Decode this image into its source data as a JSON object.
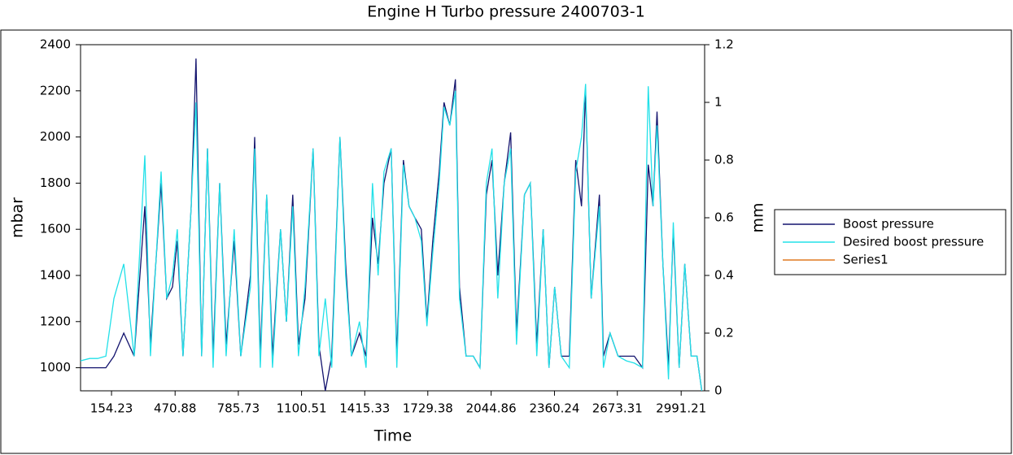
{
  "chart_data": {
    "type": "line",
    "title": "Engine H   Turbo pressure 2400703-1",
    "x_label": "Time",
    "y_label": "mbar",
    "y2_label": "mm",
    "x": [
      0,
      45,
      85,
      126,
      166,
      215,
      267,
      320,
      348,
      401,
      429,
      458,
      482,
      510,
      551,
      575,
      603,
      632,
      660,
      693,
      725,
      765,
      798,
      846,
      867,
      895,
      927,
      956,
      996,
      1025,
      1057,
      1085,
      1118,
      1158,
      1187,
      1219,
      1251,
      1292,
      1320,
      1349,
      1389,
      1422,
      1454,
      1482,
      1511,
      1547,
      1575,
      1608,
      1636,
      1665,
      1697,
      1725,
      1754,
      1786,
      1810,
      1839,
      1867,
      1887,
      1920,
      1956,
      1989,
      2021,
      2049,
      2078,
      2110,
      2142,
      2171,
      2211,
      2240,
      2272,
      2304,
      2333,
      2361,
      2394,
      2434,
      2466,
      2495,
      2515,
      2543,
      2584,
      2604,
      2637,
      2677,
      2718,
      2758,
      2799,
      2827,
      2851,
      2871,
      2900,
      2928,
      2952,
      2981,
      3009,
      3041,
      3070,
      3094
    ],
    "series": [
      {
        "name": "Boost pressure",
        "color": "#14146e",
        "values": [
          1000,
          1000,
          1000,
          1000,
          1050,
          1150,
          1050,
          1700,
          1100,
          1800,
          1300,
          1350,
          1550,
          1050,
          1700,
          2340,
          1050,
          1950,
          1050,
          1800,
          1100,
          1550,
          1050,
          1400,
          2000,
          1050,
          1750,
          1050,
          1600,
          1200,
          1750,
          1100,
          1300,
          1950,
          1100,
          900,
          1050,
          2000,
          1450,
          1050,
          1150,
          1050,
          1650,
          1450,
          1800,
          1950,
          1050,
          1900,
          1700,
          1650,
          1600,
          1200,
          1550,
          1850,
          2150,
          2050,
          2250,
          1350,
          1050,
          1050,
          1000,
          1750,
          1900,
          1400,
          1800,
          2020,
          1150,
          1750,
          1800,
          1100,
          1600,
          1000,
          1350,
          1050,
          1050,
          1900,
          1700,
          2200,
          1300,
          1750,
          1050,
          1150,
          1050,
          1050,
          1050,
          1000,
          1880,
          1700,
          2110,
          1450,
          1000,
          1600,
          1000,
          1450,
          1050,
          1050,
          900
        ]
      },
      {
        "name": "Desired boost pressure",
        "color": "#22e0e8",
        "values": [
          1030,
          1040,
          1040,
          1050,
          1300,
          1450,
          1050,
          1920,
          1050,
          1850,
          1300,
          1400,
          1600,
          1050,
          1700,
          2150,
          1050,
          1950,
          1000,
          1800,
          1050,
          1600,
          1050,
          1350,
          1950,
          1000,
          1750,
          1000,
          1600,
          1200,
          1700,
          1050,
          1350,
          1950,
          1050,
          1300,
          1000,
          2000,
          1400,
          1050,
          1200,
          1000,
          1800,
          1400,
          1850,
          1950,
          1000,
          1880,
          1700,
          1650,
          1550,
          1180,
          1500,
          1800,
          2130,
          2050,
          2200,
          1300,
          1050,
          1050,
          1000,
          1800,
          1950,
          1300,
          1800,
          1950,
          1100,
          1750,
          1800,
          1050,
          1600,
          1000,
          1350,
          1050,
          1000,
          1850,
          2000,
          2230,
          1300,
          1700,
          1000,
          1150,
          1050,
          1030,
          1020,
          1000,
          2220,
          1700,
          2050,
          1450,
          950,
          1630,
          1000,
          1450,
          1050,
          1050,
          900
        ]
      },
      {
        "name": "Series1",
        "color": "#e07820",
        "axis": "y2",
        "values": [
          null,
          null,
          null,
          null,
          null,
          null,
          null,
          null,
          null,
          null,
          null,
          null,
          null,
          null,
          null,
          null,
          null,
          null,
          null,
          null,
          null,
          null,
          null,
          null,
          null,
          null,
          null,
          null,
          null,
          null,
          null,
          null,
          null,
          null,
          null,
          null,
          null,
          null,
          null,
          null,
          null,
          null,
          null,
          null,
          null,
          null,
          null,
          null,
          null,
          null,
          null,
          null,
          null,
          null,
          null,
          null,
          null,
          null,
          null,
          null,
          null,
          null,
          null,
          null,
          null,
          null,
          null,
          null,
          null,
          null,
          null,
          null,
          null,
          null,
          null,
          null,
          null,
          null,
          null,
          null,
          null,
          null,
          null,
          null,
          null,
          null,
          null,
          null,
          null,
          null,
          null,
          null,
          null,
          null,
          null,
          null,
          null
        ]
      }
    ],
    "xlim": [
      0,
      3108
    ],
    "xticks": [
      154.23,
      470.88,
      785.73,
      1100.51,
      1415.33,
      1729.38,
      2044.86,
      2360.24,
      2673.31,
      2991.21
    ],
    "ylim": [
      900,
      2400
    ],
    "yticks": [
      1000,
      1200,
      1400,
      1600,
      1800,
      2000,
      2200,
      2400
    ],
    "y2lim": [
      0,
      1.2
    ],
    "y2ticks": [
      0,
      0.2,
      0.4,
      0.6,
      0.8,
      1,
      1.2
    ],
    "legend": "right"
  }
}
